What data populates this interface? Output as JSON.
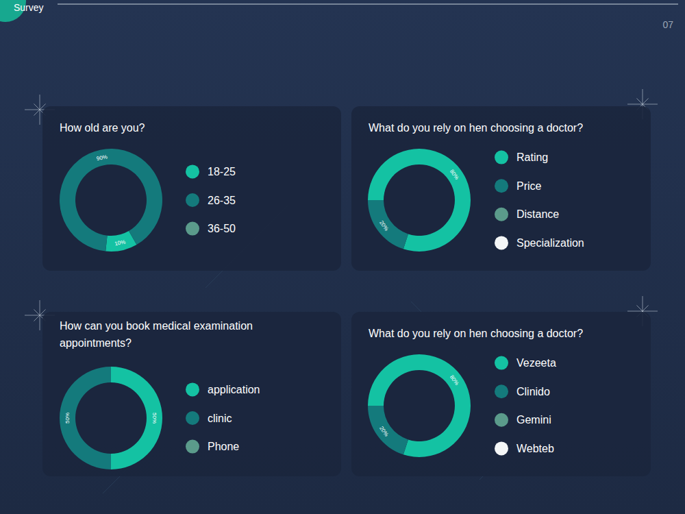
{
  "header": {
    "title": "Survey",
    "page": "07"
  },
  "chart_data": [
    {
      "type": "donut",
      "title": "How old are you?",
      "categories": [
        "18-25",
        "26-35",
        "36-50"
      ],
      "values": [
        10,
        90,
        0
      ],
      "value_labels": [
        "10%",
        "90%",
        null
      ],
      "colors": [
        "#14c2a3",
        "#147a7c",
        "#5b9b8b"
      ],
      "data_labels": true,
      "legend": "right"
    },
    {
      "type": "donut",
      "title": "What do you rely on hen choosing a doctor?",
      "categories": [
        "Rating",
        "Price",
        "Distance",
        "Specialization"
      ],
      "values": [
        80,
        20,
        0,
        0
      ],
      "value_labels": [
        "80%",
        "20%",
        null,
        null
      ],
      "colors": [
        "#14c2a3",
        "#147a7c",
        "#5b9b8b",
        "#f4f6f7"
      ],
      "data_labels": true,
      "legend": "right"
    },
    {
      "type": "donut",
      "title": "How can you book medical examination appointments?",
      "categories": [
        "application",
        "clinic",
        "Phone"
      ],
      "values": [
        50,
        50,
        0
      ],
      "value_labels": [
        "50%",
        "50%",
        null
      ],
      "colors": [
        "#14c2a3",
        "#147a7c",
        "#5b9b8b"
      ],
      "data_labels": true,
      "legend": "right"
    },
    {
      "type": "donut",
      "title": "What do you rely on hen choosing a doctor?",
      "categories": [
        "Vezeeta",
        "Clinido",
        "Gemini",
        "Webteb"
      ],
      "values": [
        80,
        20,
        0,
        0
      ],
      "value_labels": [
        "80%",
        "20%",
        null,
        null
      ],
      "colors": [
        "#14c2a3",
        "#147a7c",
        "#5b9b8b",
        "#f4f6f7"
      ],
      "data_labels": true,
      "legend": "right"
    }
  ]
}
